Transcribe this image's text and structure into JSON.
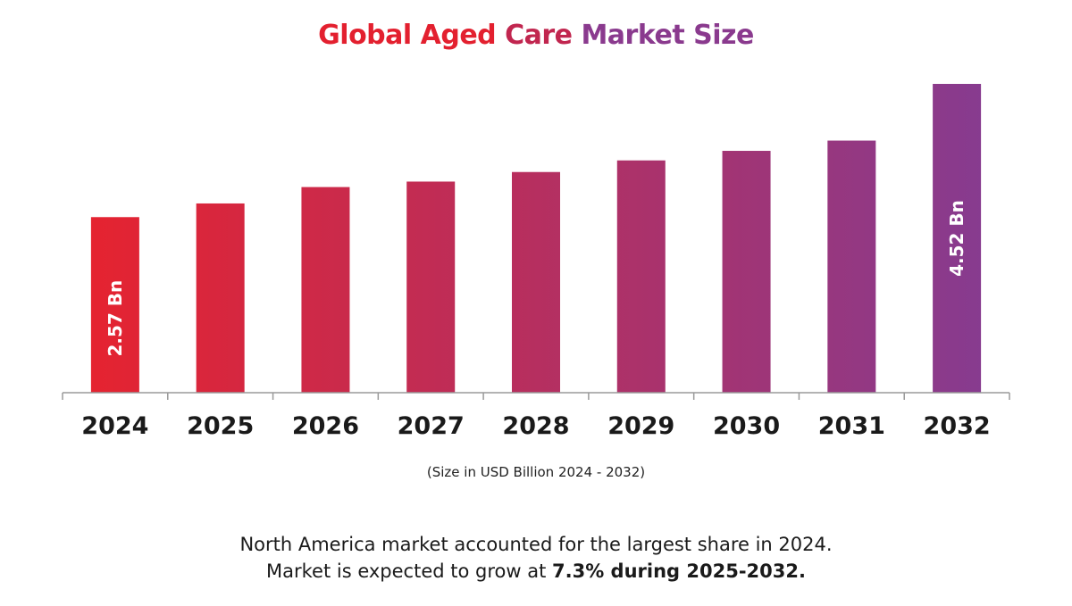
{
  "title": {
    "part1": "Global Aged",
    "part2": "Care",
    "part3": "Market Size"
  },
  "colors": {
    "gradient_start": "#e52330",
    "gradient_end": "#873b8f",
    "axis": "#9a9a9a",
    "label_text": "#ffffff",
    "tick_text": "#1a1a1a"
  },
  "chart_data": {
    "type": "bar",
    "title": "Global Aged Care Market Size",
    "xlabel": "(Size in USD Billion 2024 - 2032)",
    "ylabel": "",
    "categories": [
      "2024",
      "2025",
      "2026",
      "2027",
      "2028",
      "2029",
      "2030",
      "2031",
      "2032"
    ],
    "values": [
      2.57,
      2.77,
      3.01,
      3.09,
      3.23,
      3.4,
      3.54,
      3.69,
      4.52
    ],
    "data_labels": [
      "2.57 Bn",
      "",
      "",
      "",
      "",
      "",
      "",
      "",
      "4.52 Bn"
    ],
    "ylim": [
      0,
      4.52
    ],
    "grid": false,
    "legend": "none"
  },
  "subtitle": "(Size in USD Billion 2024 - 2032)",
  "footer": {
    "line1": "North America market accounted for the largest share in 2024.",
    "line2_prefix": "Market is expected to grow at ",
    "line2_bold": "7.3% during 2025-2032."
  }
}
